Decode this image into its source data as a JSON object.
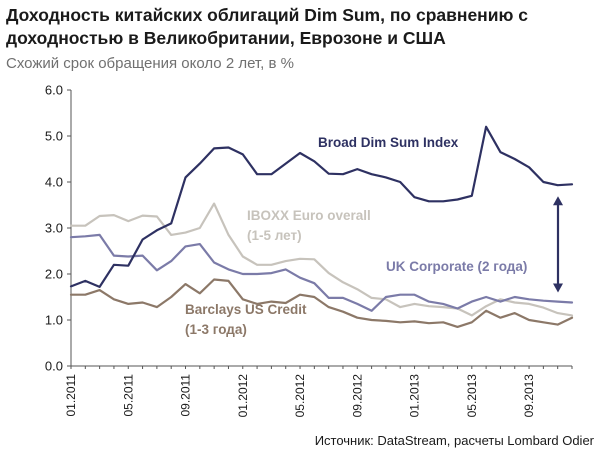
{
  "title": "Доходность китайских облигаций Dim Sum, по сравнению с доходностью в Великобритании, Еврозоне и США",
  "subtitle": "Схожий срок обращения около 2 лет, в %",
  "source": "Источник: DataStream, расчеты Lombard Odier",
  "chart_data": {
    "type": "line",
    "ylim": [
      0,
      6
    ],
    "y_ticks": [
      "0.0",
      "1.0",
      "2.0",
      "3.0",
      "4.0",
      "5.0",
      "6.0"
    ],
    "x_tick_labels": [
      "01.2011",
      "05.2011",
      "09.2011",
      "01.2012",
      "05.2012",
      "09.2012",
      "01.2013",
      "05.2013",
      "09.2013"
    ],
    "x": [
      "01.2011",
      "02.2011",
      "03.2011",
      "04.2011",
      "05.2011",
      "06.2011",
      "07.2011",
      "08.2011",
      "09.2011",
      "10.2011",
      "11.2011",
      "12.2011",
      "01.2012",
      "02.2012",
      "03.2012",
      "04.2012",
      "05.2012",
      "06.2012",
      "07.2012",
      "08.2012",
      "09.2012",
      "10.2012",
      "11.2012",
      "12.2012",
      "01.2013",
      "02.2013",
      "03.2013",
      "04.2013",
      "05.2013",
      "06.2013",
      "07.2013",
      "08.2013",
      "09.2013",
      "10.2013",
      "11.2013",
      "12.2013"
    ],
    "grid": false,
    "series": [
      {
        "name": "Broad Dim Sum Index",
        "color": "#2e3162",
        "values": [
          1.73,
          1.85,
          1.72,
          2.2,
          2.18,
          2.75,
          2.95,
          3.1,
          4.1,
          4.4,
          4.73,
          4.75,
          4.6,
          4.17,
          4.17,
          4.4,
          4.63,
          4.45,
          4.18,
          4.17,
          4.28,
          4.17,
          4.1,
          4.0,
          3.67,
          3.58,
          3.58,
          3.62,
          3.7,
          5.2,
          4.65,
          4.5,
          4.32,
          4.0,
          3.93,
          3.95
        ]
      },
      {
        "name": "IBOXX Euro overall (1-5 лет)",
        "color": "#c7c3bc",
        "values": [
          3.05,
          3.05,
          3.26,
          3.28,
          3.15,
          3.27,
          3.25,
          2.85,
          2.9,
          3.0,
          3.53,
          2.85,
          2.38,
          2.2,
          2.2,
          2.28,
          2.33,
          2.32,
          2.02,
          1.82,
          1.67,
          1.48,
          1.45,
          1.28,
          1.35,
          1.3,
          1.28,
          1.25,
          1.1,
          1.3,
          1.45,
          1.38,
          1.35,
          1.27,
          1.15,
          1.1
        ]
      },
      {
        "name": "UK Corporate (2 года)",
        "color": "#7b7ba8",
        "values": [
          2.8,
          2.82,
          2.85,
          2.4,
          2.38,
          2.4,
          2.08,
          2.28,
          2.6,
          2.65,
          2.25,
          2.1,
          2.0,
          2.0,
          2.02,
          2.1,
          1.92,
          1.8,
          1.48,
          1.48,
          1.35,
          1.2,
          1.5,
          1.55,
          1.55,
          1.4,
          1.35,
          1.25,
          1.4,
          1.5,
          1.4,
          1.5,
          1.45,
          1.42,
          1.4,
          1.38
        ]
      },
      {
        "name": "Barclays US Credit (1-3 года)",
        "color": "#8c7868",
        "values": [
          1.55,
          1.55,
          1.65,
          1.45,
          1.35,
          1.38,
          1.28,
          1.5,
          1.78,
          1.58,
          1.88,
          1.85,
          1.45,
          1.35,
          1.4,
          1.37,
          1.55,
          1.5,
          1.28,
          1.18,
          1.05,
          1.0,
          0.98,
          0.95,
          0.97,
          0.93,
          0.95,
          0.85,
          0.95,
          1.2,
          1.05,
          1.15,
          1.0,
          0.95,
          0.9,
          1.05
        ]
      }
    ],
    "annotations": [
      {
        "text": "Broad Dim Sum Index",
        "color": "#2e3162"
      },
      {
        "text": "IBOXX Euro overall",
        "text2": "(1-5 лет)",
        "color": "#c7c3bc"
      },
      {
        "text": "UK Corporate (2 года)",
        "color": "#7b7ba8"
      },
      {
        "text": "Barclays US Credit",
        "text2": "(1-3 года)",
        "color": "#8c7868"
      }
    ],
    "spread_arrow": {
      "x": "12.2013",
      "from": 1.38,
      "to": 3.95,
      "color": "#2e3162"
    }
  }
}
